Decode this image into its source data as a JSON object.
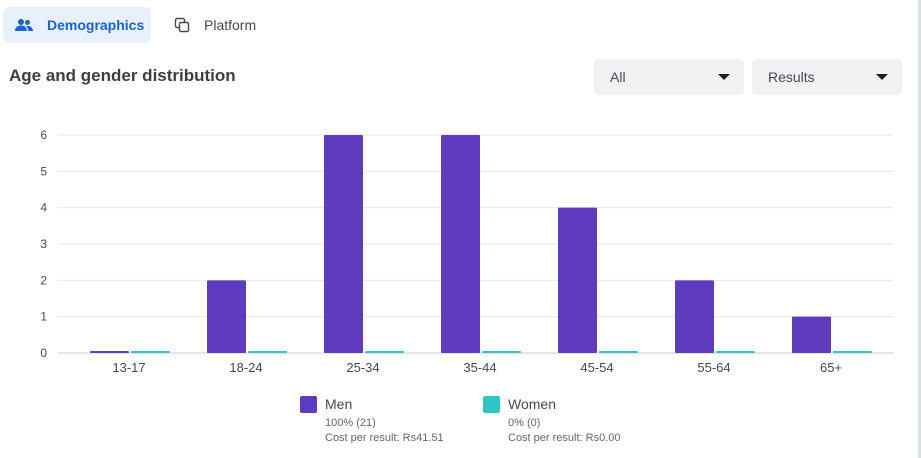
{
  "tabs": [
    {
      "label": "Demographics",
      "icon": "people-icon",
      "active": true
    },
    {
      "label": "Platform",
      "icon": "platform-icon",
      "active": false
    }
  ],
  "section": {
    "title": "Age and gender distribution"
  },
  "filters": {
    "audience": {
      "selected": "All"
    },
    "metric": {
      "selected": "Results"
    }
  },
  "colors": {
    "men": "#5e3bbf",
    "women": "#2cc7c4",
    "accent": "#1763cf"
  },
  "chart_data": {
    "type": "bar",
    "categories": [
      "13-17",
      "18-24",
      "25-34",
      "35-44",
      "45-54",
      "55-64",
      "65+"
    ],
    "series": [
      {
        "name": "Men",
        "values": [
          0,
          2,
          6,
          6,
          4,
          2,
          1
        ]
      },
      {
        "name": "Women",
        "values": [
          0,
          0,
          0,
          0,
          0,
          0,
          0
        ]
      }
    ],
    "y_ticks": [
      "0",
      "1",
      "2",
      "3",
      "4",
      "5",
      "6"
    ],
    "ylim": [
      0,
      6
    ],
    "grid": true,
    "legend_position": "bottom"
  },
  "legend": [
    {
      "name": "Men",
      "share": "100% (21)",
      "cost": "Cost per result: Rs41.51"
    },
    {
      "name": "Women",
      "share": "0% (0)",
      "cost": "Cost per result: Rs0.00"
    }
  ]
}
